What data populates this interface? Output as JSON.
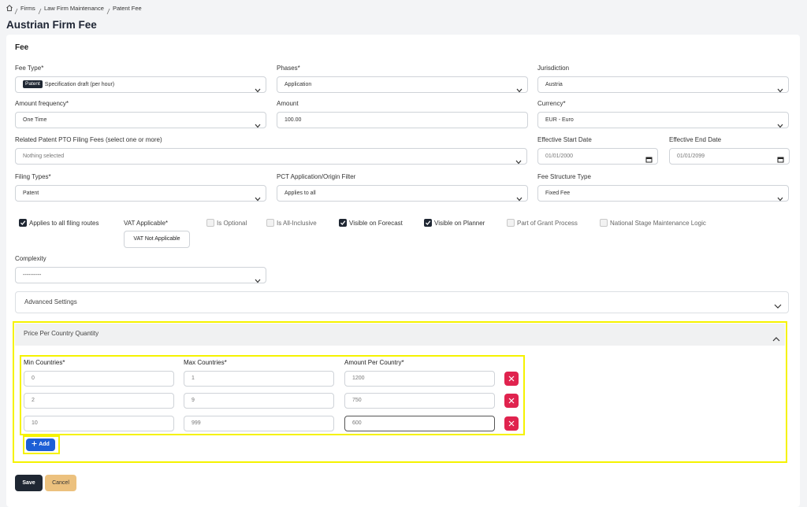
{
  "breadcrumb": [
    "Firms",
    "Law Firm Maintenance",
    "Patent Fee"
  ],
  "title": "Austrian Firm Fee",
  "section": "Fee",
  "fields": [
    {
      "label": "Fee Type*",
      "badge": "Patent",
      "value": "Specification draft (per hour)"
    },
    {
      "label": "Phases*",
      "value": "Application"
    },
    {
      "label": "Jurisdiction",
      "value": "Austria"
    },
    {
      "label": "Amount frequency*",
      "value": "One Time"
    },
    {
      "label": "Amount",
      "value": "100.00"
    },
    {
      "label": "Currency*",
      "value": "EUR - Euro"
    },
    {
      "label": "Related Patent PTO Filing Fees (select one or more)",
      "value": "Nothing selected"
    },
    {
      "label": "Effective Start Date",
      "value": "01/01/2000"
    },
    {
      "label": "Effective End Date",
      "value": "01/01/2099"
    },
    {
      "label": "Filing Types*",
      "value": "Patent"
    },
    {
      "label": "PCT Application/Origin Filter",
      "value": "Applies to all"
    },
    {
      "label": "Fee Structure Type",
      "value": "Fixed Fee"
    },
    {
      "label": "Complexity",
      "value": "----------"
    }
  ],
  "checkboxes": [
    {
      "label": "Applies to all filing routes",
      "checked": true
    },
    {
      "label": "Is Optional",
      "checked": false
    },
    {
      "label": "Is All-Inclusive",
      "checked": false
    },
    {
      "label": "Visible on Forecast",
      "checked": true
    },
    {
      "label": "Visible on Planner",
      "checked": true
    },
    {
      "label": "Part of Grant Process",
      "checked": false
    },
    {
      "label": "National Stage Maintenance Logic",
      "checked": false
    }
  ],
  "vat": {
    "label": "VAT Applicable*",
    "button": "VAT Not Applicable"
  },
  "advanced_settings": "Advanced Settings",
  "price_per_country": {
    "title": "Price Per Country Quantity",
    "columns": [
      "Min Countries*",
      "Max Countries*",
      "Amount Per Country*"
    ],
    "rows": [
      [
        "0",
        "1",
        "1200"
      ],
      [
        "2",
        "9",
        "750"
      ],
      [
        "10",
        "999",
        "600"
      ]
    ],
    "add": "Add"
  },
  "actions": {
    "save": "Save",
    "cancel": "Cancel"
  }
}
